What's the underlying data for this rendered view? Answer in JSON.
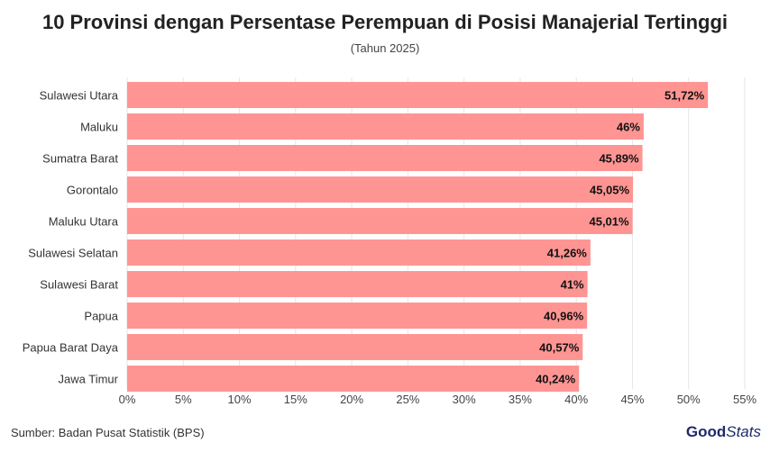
{
  "header": {
    "title": "10 Provinsi dengan Persentase Perempuan di Posisi Manajerial Tertinggi",
    "subtitle": "(Tahun 2025)"
  },
  "footer": {
    "source": "Sumber: Badan Pusat Statistik (BPS)",
    "logo_part1": "Good",
    "logo_part2": "Stats"
  },
  "chart_data": {
    "type": "bar",
    "orientation": "horizontal",
    "title": "10 Provinsi dengan Persentase Perempuan di Posisi Manajerial Tertinggi",
    "subtitle": "(Tahun 2025)",
    "categories": [
      "Sulawesi Utara",
      "Maluku",
      "Sumatra Barat",
      "Gorontalo",
      "Maluku Utara",
      "Sulawesi Selatan",
      "Sulawesi Barat",
      "Papua",
      "Papua Barat Daya",
      "Jawa Timur"
    ],
    "values": [
      51.72,
      46,
      45.89,
      45.05,
      45.01,
      41.26,
      41,
      40.96,
      40.57,
      40.24
    ],
    "value_labels": [
      "51,72%",
      "46%",
      "45,89%",
      "45,05%",
      "45,01%",
      "41,26%",
      "41%",
      "40,96%",
      "40,57%",
      "40,24%"
    ],
    "xlim": [
      0,
      55
    ],
    "xticks": [
      0,
      5,
      10,
      15,
      20,
      25,
      30,
      35,
      40,
      45,
      50,
      55
    ],
    "xtick_labels": [
      "0%",
      "5%",
      "10%",
      "15%",
      "20%",
      "25%",
      "30%",
      "35%",
      "40%",
      "45%",
      "50%",
      "55%"
    ],
    "xlabel": "",
    "ylabel": "",
    "grid": true,
    "legend": "none",
    "bar_color": "#ff9593"
  }
}
